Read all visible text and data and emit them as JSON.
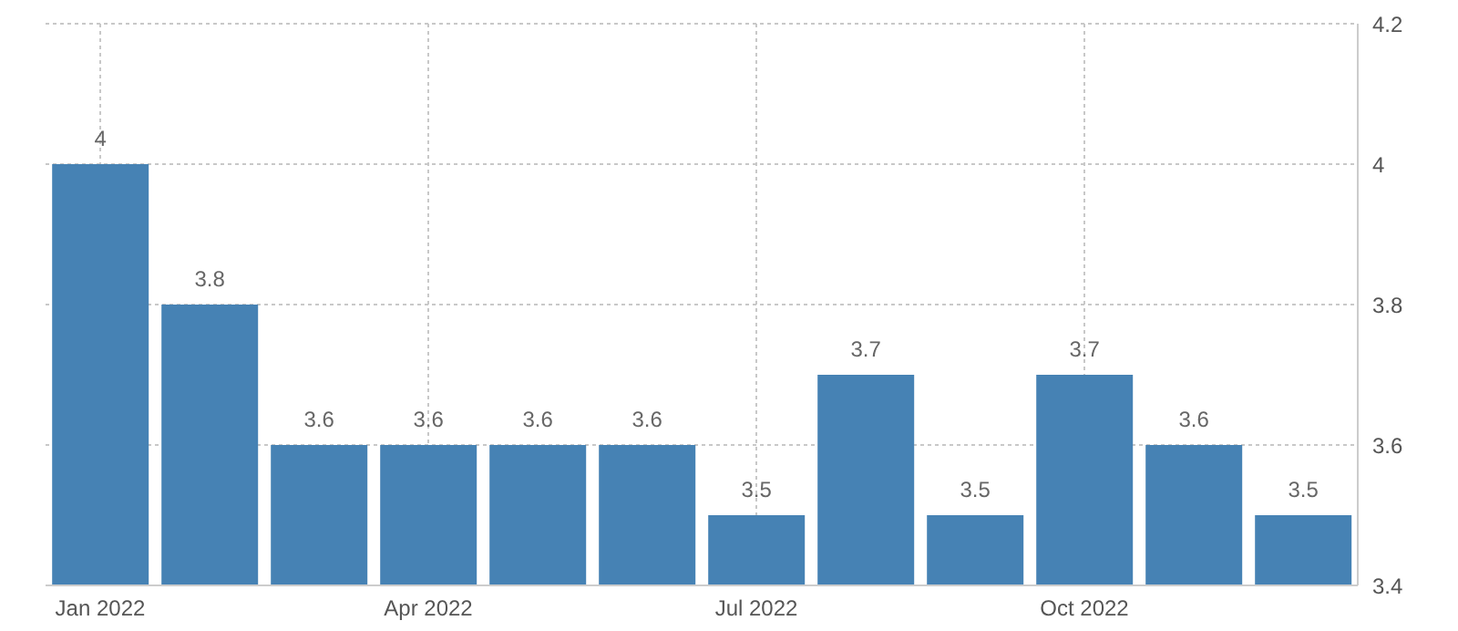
{
  "chart_data": {
    "type": "bar",
    "categories": [
      "Jan 2022",
      null,
      null,
      "Apr 2022",
      null,
      null,
      "Jul 2022",
      null,
      null,
      "Oct 2022",
      null,
      null
    ],
    "values": [
      4,
      3.8,
      3.6,
      3.6,
      3.6,
      3.6,
      3.5,
      3.7,
      3.5,
      3.7,
      3.6,
      3.5
    ],
    "color": "#4682b4",
    "ylim": [
      3.4,
      4.2
    ],
    "yticks": [
      3.4,
      3.6,
      3.8,
      4,
      4.2
    ],
    "grid": true,
    "data_labels": true
  }
}
